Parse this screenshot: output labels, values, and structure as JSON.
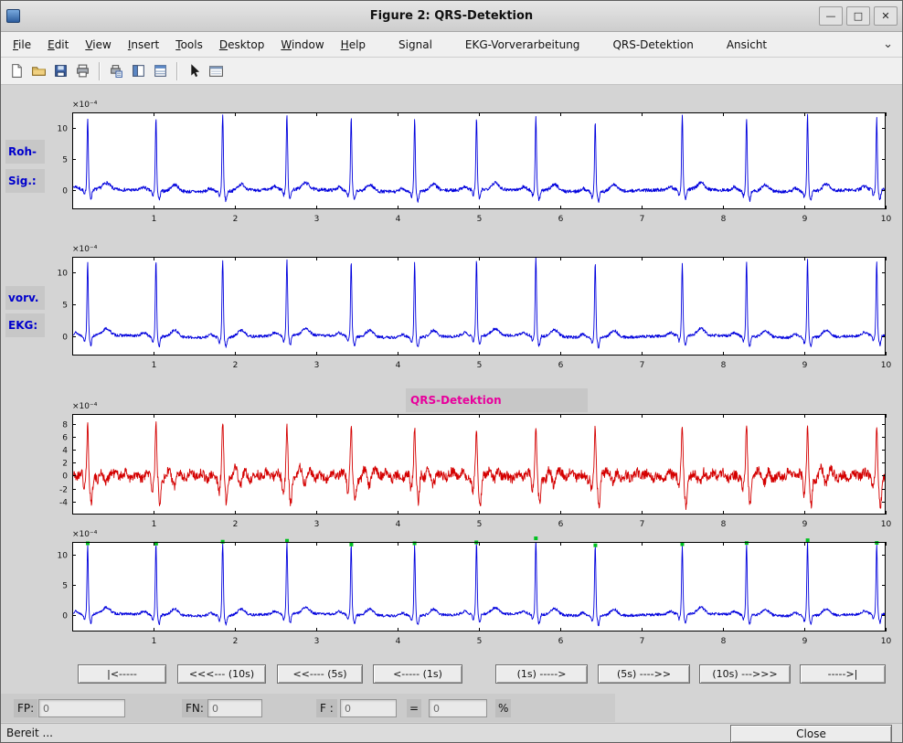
{
  "window": {
    "title": "Figure 2: QRS-Detektion",
    "controls": {
      "minimize": "—",
      "maximize": "□",
      "close": "✕"
    }
  },
  "menu": {
    "items": [
      {
        "label": "File",
        "accel": true
      },
      {
        "label": "Edit",
        "accel": true
      },
      {
        "label": "View",
        "accel": true
      },
      {
        "label": "Insert",
        "accel": true
      },
      {
        "label": "Tools",
        "accel": true
      },
      {
        "label": "Desktop",
        "accel": true
      },
      {
        "label": "Window",
        "accel": true
      },
      {
        "label": "Help",
        "accel": true
      },
      {
        "label": "Signal",
        "accel": false
      },
      {
        "label": "EKG-Vorverarbeitung",
        "accel": false
      },
      {
        "label": "QRS-Detektion",
        "accel": false
      },
      {
        "label": "Ansicht",
        "accel": false
      }
    ],
    "overflow_chevron": "⌄"
  },
  "toolbar": {
    "icons": [
      "new-figure",
      "open-file",
      "save-figure",
      "print-figure",
      "print-preview",
      "figure-palette",
      "plot-browser",
      "edit-plot",
      "property-editor"
    ]
  },
  "labels": {
    "raw_line1": "Roh-",
    "raw_line2": "Sig.:",
    "prep_line1": "vorv.",
    "prep_line2": "EKG:",
    "qrs_title": "QRS-Detektion"
  },
  "nav_buttons": [
    "|<-----",
    "<<<--- (10s)",
    "<<---- (5s)",
    "<----- (1s)",
    "(1s) ----->",
    "(5s) ---->>",
    "(10s) --->>>",
    "----->|"
  ],
  "fields": {
    "fp_label": "FP:",
    "fp_value": "0",
    "fn_label": "FN:",
    "fn_value": "0",
    "f_label": "F :",
    "f_value": "0",
    "equals_sign": "=",
    "ratio_value": "0",
    "percent_sign": "%"
  },
  "statusbar": {
    "text": "Bereit ...",
    "close_label": "Close"
  },
  "colors": {
    "signal_blue": "#0000dd",
    "signal_red": "#d40000",
    "marker_green": "#00c020",
    "label_blue": "#0000cc",
    "title_magenta": "#e8009c"
  },
  "chart_data": [
    {
      "id": "raw_ecg",
      "type": "line",
      "kind": "ecg",
      "color": "#0000dd",
      "x": {
        "range": [
          0,
          10
        ],
        "ticks": [
          1,
          2,
          3,
          4,
          5,
          6,
          7,
          8,
          9,
          10
        ]
      },
      "y": {
        "lim": [
          -3,
          12.5
        ],
        "ticks": [
          0,
          5,
          10
        ],
        "scale_label": "×10⁻⁴"
      },
      "beats": [
        0.19,
        1.03,
        1.85,
        2.64,
        3.43,
        4.21,
        4.97,
        5.7,
        6.43,
        7.5,
        8.29,
        9.04,
        9.89
      ],
      "r_amp": 11.8,
      "noise": 0.55,
      "seed": 7,
      "markers": false
    },
    {
      "id": "preprocessed_ecg",
      "type": "line",
      "kind": "ecg",
      "color": "#0000dd",
      "x": {
        "range": [
          0,
          10
        ],
        "ticks": [
          1,
          2,
          3,
          4,
          5,
          6,
          7,
          8,
          9,
          10
        ]
      },
      "y": {
        "lim": [
          -3,
          12.5
        ],
        "ticks": [
          0,
          5,
          10
        ],
        "scale_label": "×10⁻⁴"
      },
      "beats": [
        0.19,
        1.03,
        1.85,
        2.64,
        3.43,
        4.21,
        4.97,
        5.7,
        6.43,
        7.5,
        8.29,
        9.04,
        9.89
      ],
      "r_amp": 11.8,
      "noise": 0.45,
      "seed": 13,
      "markers": false
    },
    {
      "id": "qrs_detection_signal",
      "type": "line",
      "kind": "qrs",
      "color": "#d40000",
      "x": {
        "range": [
          0,
          10
        ],
        "ticks": [
          1,
          2,
          3,
          4,
          5,
          6,
          7,
          8,
          9,
          10
        ]
      },
      "y": {
        "lim": [
          -6,
          9.5
        ],
        "ticks": [
          8,
          6,
          4,
          2,
          0,
          -2,
          -4
        ],
        "scale_label": "×10⁻⁴"
      },
      "beats": [
        0.19,
        1.03,
        1.85,
        2.64,
        3.43,
        4.21,
        4.97,
        5.7,
        6.43,
        7.5,
        8.29,
        9.04,
        9.89
      ],
      "r_amp": 7.7,
      "noise": 1.5,
      "seed": 21,
      "markers": false
    },
    {
      "id": "detected_beats",
      "type": "line",
      "kind": "ecg",
      "color": "#0000dd",
      "x": {
        "range": [
          0,
          10
        ],
        "ticks": [
          1,
          2,
          3,
          4,
          5,
          6,
          7,
          8,
          9,
          10
        ]
      },
      "y": {
        "lim": [
          -2.8,
          12.2
        ],
        "ticks": [
          0,
          5,
          10
        ],
        "scale_label": "×10⁻⁴"
      },
      "beats": [
        0.19,
        1.03,
        1.85,
        2.64,
        3.43,
        4.21,
        4.97,
        5.7,
        6.43,
        7.5,
        8.29,
        9.04,
        9.89
      ],
      "r_amp": 11.8,
      "noise": 0.45,
      "seed": 13,
      "markers": true,
      "marker_color": "#00c020"
    }
  ]
}
